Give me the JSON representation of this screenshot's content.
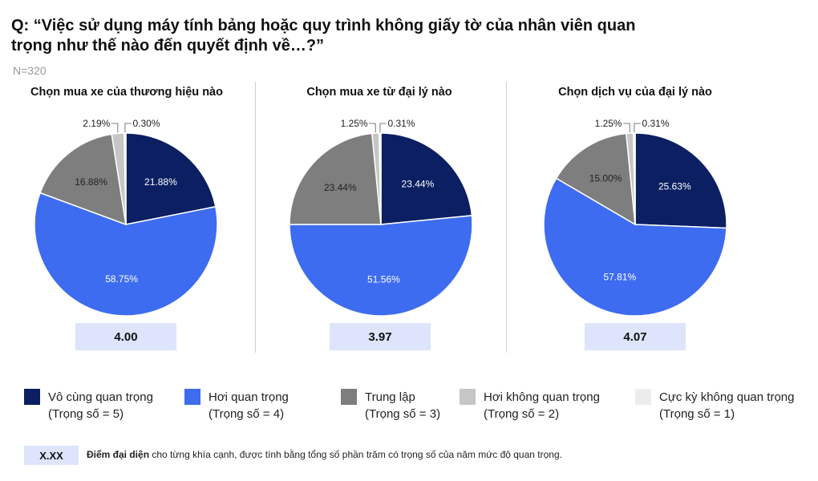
{
  "title": "Q: “Việc sử dụng máy tính bảng hoặc quy trình không giấy tờ của nhân viên quan trọng như thế nào đến quyết định về…?”",
  "sample_size": "N=320",
  "chart_data": [
    {
      "type": "pie",
      "title": "Chọn mua xe của thương hiệu nào",
      "labels": [
        "Vô cùng quan trọng",
        "Hơi quan trọng",
        "Trung lập",
        "Hơi không quan trọng",
        "Cực kỳ không quan trọng"
      ],
      "values": [
        21.88,
        58.75,
        16.88,
        2.19,
        0.3
      ],
      "value_labels": [
        "21.88%",
        "58.75%",
        "16.88%",
        "2.19%",
        "0.30%"
      ],
      "score": "4.00"
    },
    {
      "type": "pie",
      "title": "Chọn mua xe từ đại lý nào",
      "labels": [
        "Vô cùng quan trọng",
        "Hơi quan trọng",
        "Trung lập",
        "Hơi không quan trọng",
        "Cực kỳ không quan trọng"
      ],
      "values": [
        23.44,
        51.56,
        23.44,
        1.25,
        0.31
      ],
      "value_labels": [
        "23.44%",
        "51.56%",
        "23.44%",
        "1.25%",
        "0.31%"
      ],
      "score": "3.97"
    },
    {
      "type": "pie",
      "title": "Chọn dịch vụ của đại lý nào",
      "labels": [
        "Vô cùng quan trọng",
        "Hơi quan trọng",
        "Trung lập",
        "Hơi không quan trọng",
        "Cực kỳ không quan trọng"
      ],
      "values": [
        25.63,
        57.81,
        15.0,
        1.25,
        0.31
      ],
      "value_labels": [
        "25.63%",
        "57.81%",
        "15.00%",
        "1.25%",
        "0.31%"
      ],
      "score": "4.07"
    }
  ],
  "legend": [
    {
      "line1": "Vô cùng quan trọng",
      "line2": "(Trọng số = 5)",
      "color": "#0b1f62"
    },
    {
      "line1": "Hơi quan trọng",
      "line2": "(Trọng số = 4)",
      "color": "#3d6cf0"
    },
    {
      "line1": "Trung lập",
      "line2": "(Trọng số = 3)",
      "color": "#7e7e7e"
    },
    {
      "line1": "Hơi không quan trọng",
      "line2": "(Trọng số = 2)",
      "color": "#c6c6c6"
    },
    {
      "line1": "Cực kỳ không quan trọng",
      "line2": "(Trọng số = 1)",
      "color": "#ececec"
    }
  ],
  "note": {
    "box_label": "X.XX",
    "bold": "Điểm đại diện",
    "text": " cho từng khía cạnh, được tính bằng tổng số phần trăm có trọng số của năm mức độ quan trọng."
  }
}
